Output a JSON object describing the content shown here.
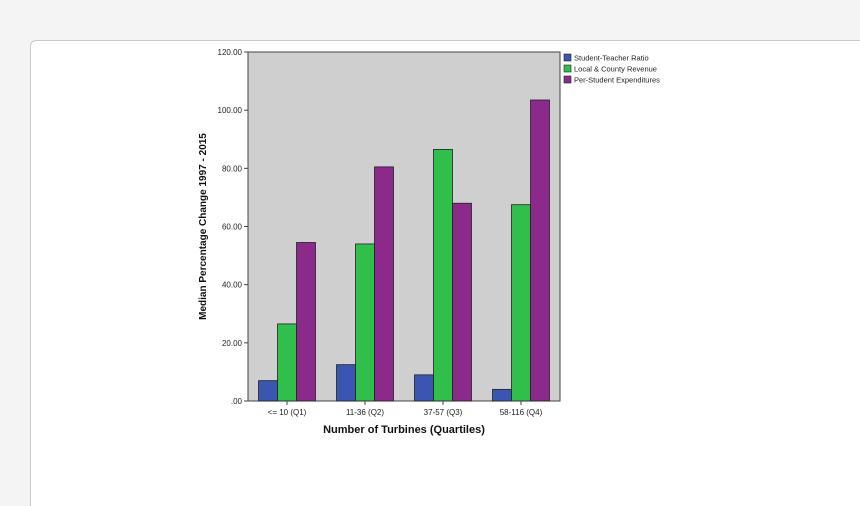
{
  "chart_data": {
    "type": "bar",
    "title": "",
    "xlabel": "Number of Turbines (Quartiles)",
    "ylabel": "Median Percentage Change 1997 - 2015",
    "categories": [
      "<= 10 (Q1)",
      "11-36 (Q2)",
      "37-57 (Q3)",
      "58-116 (Q4)"
    ],
    "series": [
      {
        "name": "Student-Teacher Ratio",
        "color": "#3a56b0",
        "values": [
          7.0,
          12.5,
          9.0,
          4.0
        ]
      },
      {
        "name": "Local & County Revenue",
        "color": "#2fbf4a",
        "values": [
          26.5,
          54.0,
          86.5,
          67.5
        ]
      },
      {
        "name": "Per-Student Expenditures",
        "color": "#8b2a8a",
        "values": [
          54.5,
          80.5,
          68.0,
          103.5
        ]
      }
    ],
    "ylim": [
      0,
      120
    ],
    "yticks": [
      ".00",
      "20.00",
      "40.00",
      "60.00",
      "80.00",
      "100.00",
      "120.00"
    ],
    "ytick_values": [
      0,
      20,
      40,
      60,
      80,
      100,
      120
    ],
    "legend_position": "top-right",
    "plot_background": "#cfcfcf",
    "grid": false
  }
}
